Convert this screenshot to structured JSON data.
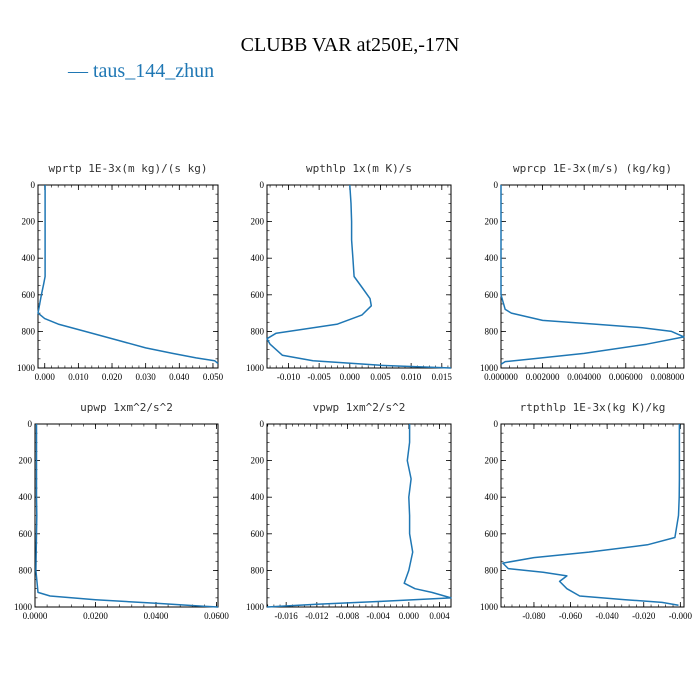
{
  "title": "CLUBB VAR at250E,-17N",
  "legend": {
    "label": "— taus_144_zhun",
    "color": "#1f77b4"
  },
  "chart_data": [
    {
      "type": "line",
      "title": "wprtp  1E-3x(m kg)/(s kg)",
      "xlim": [
        -0.002,
        0.0515
      ],
      "ylim": [
        1000,
        0
      ],
      "y_reversed": true,
      "xticks": [
        0.0,
        0.01,
        0.02,
        0.03,
        0.04,
        0.05
      ],
      "xtick_labels": [
        "0.000",
        "0.010",
        "0.020",
        "0.030",
        "0.040",
        "0.050"
      ],
      "yticks": [
        0,
        200,
        400,
        600,
        800,
        1000
      ],
      "ytick_labels": [
        "0",
        "200",
        "400",
        "600",
        "800",
        "1000"
      ],
      "series": [
        {
          "color": "#1f77b4",
          "x": [
            0.0001,
            0.0001,
            0.0001,
            0.0001,
            0.0001,
            0.0001,
            -0.0003,
            -0.001,
            -0.002,
            0.0,
            0.004,
            0.012,
            0.022,
            0.03,
            0.038,
            0.045,
            0.0505,
            0.0515
          ],
          "y": [
            0,
            100,
            200,
            300,
            400,
            500,
            540,
            600,
            700,
            730,
            760,
            800,
            850,
            890,
            920,
            945,
            960,
            975
          ]
        }
      ]
    },
    {
      "type": "line",
      "title": "wpthlp  1x(m K)/s",
      "xlim": [
        -0.0135,
        0.0165
      ],
      "ylim": [
        1000,
        0
      ],
      "y_reversed": true,
      "xticks": [
        -0.01,
        -0.005,
        0.0,
        0.005,
        0.01,
        0.015
      ],
      "xtick_labels": [
        "-0.010",
        "-0.005",
        "0.000",
        "0.005",
        "0.010",
        "0.015"
      ],
      "yticks": [
        0,
        200,
        400,
        600,
        800,
        1000
      ],
      "ytick_labels": [
        "0",
        "200",
        "400",
        "600",
        "800",
        "1000"
      ],
      "series": [
        {
          "color": "#1f77b4",
          "x": [
            0.0,
            0.0002,
            0.0003,
            0.0003,
            0.0005,
            0.0007,
            0.002,
            0.0033,
            0.0035,
            0.002,
            -0.002,
            -0.008,
            -0.012,
            -0.0135,
            -0.013,
            -0.011,
            -0.006,
            0.005,
            0.0165
          ],
          "y": [
            0,
            100,
            200,
            300,
            400,
            500,
            560,
            620,
            660,
            710,
            760,
            790,
            810,
            840,
            870,
            930,
            960,
            985,
            1000
          ]
        }
      ]
    },
    {
      "type": "line",
      "title": "wprcp  1E-3x(m/s) (kg/kg)",
      "xlim": [
        0.0,
        0.0088
      ],
      "ylim": [
        1000,
        0
      ],
      "y_reversed": true,
      "xticks": [
        0.0,
        0.002,
        0.004,
        0.006,
        0.008
      ],
      "xtick_labels": [
        "0.000000",
        "0.002000",
        "0.004000",
        "0.006000",
        "0.008000"
      ],
      "yticks": [
        0,
        200,
        400,
        600,
        800,
        1000
      ],
      "ytick_labels": [
        "0",
        "200",
        "400",
        "600",
        "800",
        "1000"
      ],
      "series": [
        {
          "color": "#1f77b4",
          "x": [
            0.0,
            0.0,
            0.0,
            0.0,
            0.0,
            0.0,
            0.0,
            0.0002,
            0.0005,
            0.002,
            0.0045,
            0.0068,
            0.0082,
            0.0088,
            0.007,
            0.004,
            0.0015,
            0.0002,
            0.0
          ],
          "y": [
            0,
            100,
            200,
            300,
            400,
            500,
            600,
            680,
            700,
            740,
            760,
            780,
            800,
            830,
            870,
            920,
            950,
            965,
            980
          ]
        }
      ]
    },
    {
      "type": "line",
      "title": "upwp  1xm^2/s^2",
      "xlim": [
        0.0,
        0.0605
      ],
      "ylim": [
        1000,
        0
      ],
      "y_reversed": true,
      "xticks": [
        0.0,
        0.02,
        0.04,
        0.06
      ],
      "xtick_labels": [
        "0.0000",
        "0.0200",
        "0.0400",
        "0.0600"
      ],
      "yticks": [
        0,
        200,
        400,
        600,
        800,
        1000
      ],
      "ytick_labels": [
        "0",
        "200",
        "400",
        "600",
        "800",
        "1000"
      ],
      "series": [
        {
          "color": "#1f77b4",
          "x": [
            0.0005,
            0.0005,
            0.0005,
            0.0005,
            0.0005,
            0.0006,
            0.0005,
            0.0003,
            0.001,
            0.005,
            0.02,
            0.04,
            0.055,
            0.0605
          ],
          "y": [
            0,
            100,
            200,
            300,
            400,
            500,
            600,
            800,
            920,
            940,
            960,
            980,
            995,
            1000
          ]
        }
      ]
    },
    {
      "type": "line",
      "title": "vpwp  1xm^2/s^2",
      "xlim": [
        -0.0185,
        0.0055
      ],
      "ylim": [
        1000,
        0
      ],
      "y_reversed": true,
      "xticks": [
        -0.016,
        -0.012,
        -0.008,
        -0.004,
        0.0,
        0.004
      ],
      "xtick_labels": [
        "-0.016",
        "-0.012",
        "-0.008",
        "-0.004",
        "0.000",
        "0.004"
      ],
      "yticks": [
        0,
        200,
        400,
        600,
        800,
        1000
      ],
      "ytick_labels": [
        "0",
        "200",
        "400",
        "600",
        "800",
        "1000"
      ],
      "series": [
        {
          "color": "#1f77b4",
          "x": [
            0.0001,
            0.0001,
            -0.0002,
            0.0003,
            0.0,
            0.0001,
            0.0001,
            0.0005,
            0.0,
            -0.0006,
            0.0008,
            0.003,
            0.0055,
            -0.004,
            -0.012,
            -0.0185
          ],
          "y": [
            0,
            100,
            200,
            300,
            400,
            500,
            600,
            700,
            800,
            870,
            900,
            920,
            950,
            970,
            985,
            1000
          ]
        }
      ]
    },
    {
      "type": "line",
      "title": "rtpthlp  1E-3x(kg K)/kg",
      "xlim": [
        -0.098,
        0.002
      ],
      "ylim": [
        1000,
        0
      ],
      "y_reversed": true,
      "xticks": [
        -0.08,
        -0.06,
        -0.04,
        -0.02,
        0.0
      ],
      "xtick_labels": [
        "-0.080",
        "-0.060",
        "-0.040",
        "-0.020",
        "-0.000"
      ],
      "yticks": [
        0,
        200,
        400,
        600,
        800,
        1000
      ],
      "ytick_labels": [
        "0",
        "200",
        "400",
        "600",
        "800",
        "1000"
      ],
      "series": [
        {
          "color": "#1f77b4",
          "x": [
            -0.0005,
            -0.0005,
            -0.0005,
            -0.0005,
            -0.0006,
            -0.001,
            -0.003,
            -0.018,
            -0.05,
            -0.08,
            -0.097,
            -0.094,
            -0.075,
            -0.062,
            -0.066,
            -0.062,
            -0.055,
            -0.03,
            -0.01,
            -0.001
          ],
          "y": [
            0,
            100,
            200,
            300,
            400,
            500,
            620,
            660,
            700,
            730,
            760,
            790,
            810,
            830,
            860,
            900,
            940,
            960,
            975,
            990
          ]
        }
      ]
    }
  ]
}
